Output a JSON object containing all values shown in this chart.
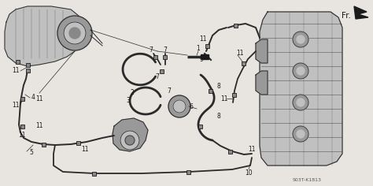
{
  "doc_number": "S03T-K1813",
  "fr_label": "Fr.",
  "bg_color": "#e8e5e0",
  "line_color": "#2a2a2a",
  "dark_color": "#1a1a1a",
  "gray_color": "#888888",
  "light_gray": "#c0c0c0",
  "mid_gray": "#999999",
  "font_size": 5.5,
  "font_size_doc": 4.5,
  "font_size_fr": 7.5,
  "clamp_size": 0.008
}
